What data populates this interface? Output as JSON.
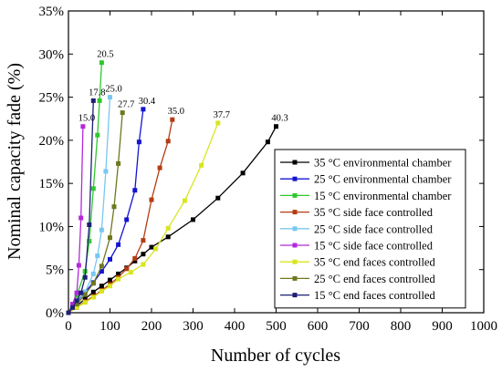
{
  "chart_data": {
    "type": "line",
    "xlabel": "Number of cycles",
    "ylabel": "Nominal capacity fade (%)",
    "xlim": [
      0,
      1000
    ],
    "ylim": [
      0,
      35
    ],
    "x_ticks": [
      0,
      100,
      200,
      300,
      400,
      500,
      600,
      700,
      800,
      900,
      1000
    ],
    "y_ticks": [
      0,
      5,
      10,
      15,
      20,
      25,
      30,
      35
    ],
    "y_tick_labels": [
      "0%",
      "5%",
      "10%",
      "15%",
      "20%",
      "25%",
      "30%",
      "35%"
    ],
    "grid": false,
    "legend_position": "lower-right",
    "series": [
      {
        "name": "35 °C environmental chamber",
        "color": "#000000",
        "end_label": "40.3",
        "x": [
          0,
          20,
          40,
          60,
          80,
          100,
          120,
          140,
          160,
          180,
          200,
          240,
          300,
          360,
          420,
          480,
          500
        ],
        "y": [
          0,
          0.8,
          1.6,
          2.4,
          3.1,
          3.8,
          4.5,
          5.2,
          6.0,
          6.8,
          7.6,
          8.8,
          10.8,
          13.3,
          16.2,
          19.8,
          21.6
        ]
      },
      {
        "name": "25 °C environmental chamber",
        "color": "#1414d2",
        "end_label": "30.4",
        "x": [
          0,
          20,
          40,
          60,
          80,
          100,
          120,
          140,
          160,
          170,
          180
        ],
        "y": [
          0,
          1.2,
          2.4,
          3.5,
          4.8,
          6.2,
          7.9,
          10.8,
          14.2,
          19.8,
          23.6
        ]
      },
      {
        "name": "15 °C environmental chamber",
        "color": "#2fc82f",
        "end_label": "20.5",
        "x": [
          0,
          20,
          40,
          50,
          60,
          70,
          75,
          80
        ],
        "y": [
          0,
          2.0,
          4.8,
          8.3,
          14.4,
          20.6,
          24.6,
          29.0
        ]
      },
      {
        "name": "35 °C side face controlled",
        "color": "#b43c14",
        "end_label": "35.0",
        "x": [
          0,
          20,
          40,
          60,
          80,
          100,
          120,
          140,
          160,
          180,
          200,
          220,
          240,
          250
        ],
        "y": [
          0,
          0.6,
          1.3,
          1.9,
          2.6,
          3.3,
          4.1,
          5.1,
          6.3,
          8.4,
          13.1,
          16.8,
          19.9,
          22.4
        ]
      },
      {
        "name": "25 °C side face controlled",
        "color": "#78c8f0",
        "end_label": "25.0",
        "x": [
          0,
          20,
          40,
          60,
          70,
          80,
          90,
          100
        ],
        "y": [
          0,
          1.0,
          2.4,
          4.5,
          6.6,
          9.6,
          16.4,
          25.0
        ]
      },
      {
        "name": "15 °C side face controlled",
        "color": "#b428dc",
        "end_label": "15.0",
        "x": [
          0,
          10,
          20,
          25,
          30,
          35
        ],
        "y": [
          0,
          1.0,
          2.3,
          5.5,
          11.0,
          21.6
        ]
      },
      {
        "name": "35 °C end faces controlled",
        "color": "#d7e61e",
        "end_label": "37.7",
        "x": [
          0,
          20,
          40,
          60,
          80,
          100,
          120,
          150,
          180,
          210,
          240,
          280,
          320,
          360
        ],
        "y": [
          0,
          0.6,
          1.2,
          1.8,
          2.5,
          3.1,
          3.9,
          4.7,
          5.6,
          7.4,
          9.8,
          13.0,
          17.1,
          22.0
        ]
      },
      {
        "name": "25 °C end faces controlled",
        "color": "#6e781e",
        "end_label": "27.7",
        "x": [
          0,
          20,
          40,
          60,
          80,
          100,
          110,
          120,
          130
        ],
        "y": [
          0,
          1.0,
          2.1,
          3.4,
          5.4,
          8.7,
          12.3,
          17.3,
          23.2
        ]
      },
      {
        "name": "15 °C end faces controlled",
        "color": "#1e1e78",
        "end_label": "17.8",
        "x": [
          0,
          10,
          20,
          30,
          40,
          50,
          60
        ],
        "y": [
          0,
          0.6,
          1.4,
          2.3,
          4.1,
          10.2,
          24.6
        ]
      }
    ]
  }
}
